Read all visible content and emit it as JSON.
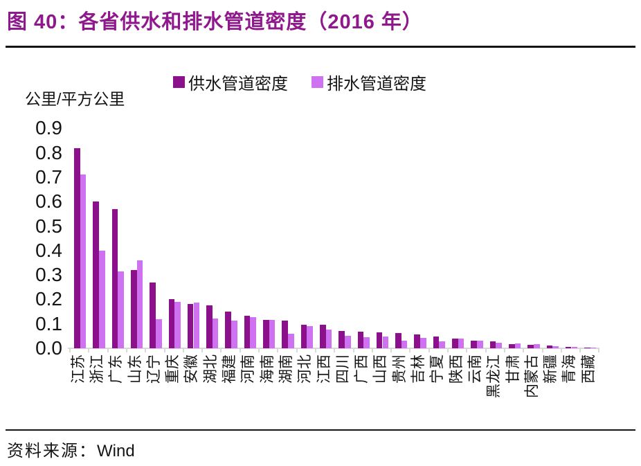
{
  "title": "图 40：各省供水和排水管道密度（2016 年）",
  "source": {
    "label": "资料来源：",
    "value": "Wind"
  },
  "colors": {
    "title": "#8e188c",
    "supply_bar": "#8c108c",
    "drain_bar": "#ce72f2",
    "axis": "#d9d9d9",
    "text": "#141414"
  },
  "chart_data": {
    "type": "bar",
    "title": "各省供水和排水管道密度（2016 年）",
    "ylabel": "公里/平方公里",
    "xlabel": "",
    "ylim": [
      0,
      0.9
    ],
    "yticks": [
      0.0,
      0.1,
      0.2,
      0.3,
      0.4,
      0.5,
      0.6,
      0.7,
      0.8,
      0.9
    ],
    "grid": false,
    "legend_position": "top-center",
    "categories": [
      "江苏",
      "浙江",
      "广东",
      "山东",
      "辽宁",
      "重庆",
      "安徽",
      "湖北",
      "福建",
      "河南",
      "海南",
      "湖南",
      "河北",
      "江西",
      "四川",
      "广西",
      "山西",
      "贵州",
      "吉林",
      "宁夏",
      "陕西",
      "云南",
      "黑龙江",
      "甘肃",
      "内蒙古",
      "新疆",
      "青海",
      "西藏"
    ],
    "series": [
      {
        "name": "供水管道密度",
        "color": "#8c108c",
        "values": [
          0.82,
          0.6,
          0.57,
          0.32,
          0.27,
          0.2,
          0.18,
          0.175,
          0.15,
          0.133,
          0.117,
          0.112,
          0.096,
          0.095,
          0.072,
          0.068,
          0.066,
          0.062,
          0.058,
          0.047,
          0.04,
          0.03,
          0.028,
          0.018,
          0.014,
          0.011,
          0.007,
          0.004
        ]
      },
      {
        "name": "排水管道密度",
        "color": "#ce72f2",
        "values": [
          0.71,
          0.4,
          0.315,
          0.36,
          0.12,
          0.19,
          0.188,
          0.123,
          0.114,
          0.127,
          0.115,
          0.06,
          0.091,
          0.076,
          0.051,
          0.044,
          0.047,
          0.032,
          0.042,
          0.028,
          0.04,
          0.032,
          0.024,
          0.02,
          0.017,
          0.008,
          0.005,
          0.002
        ]
      }
    ]
  }
}
